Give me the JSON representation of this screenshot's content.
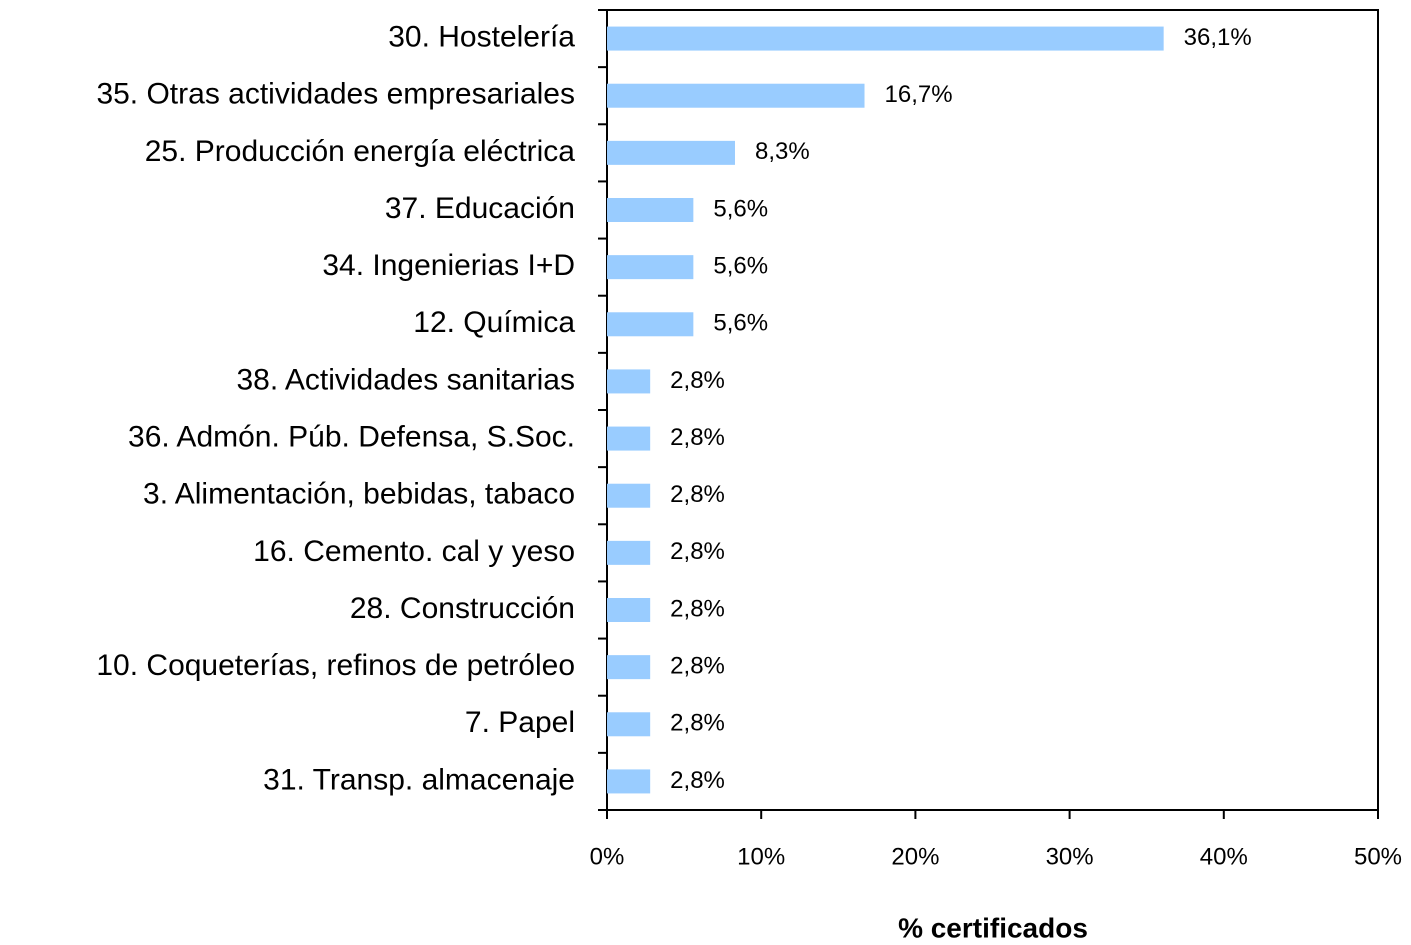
{
  "chart_data": {
    "type": "barh",
    "categories": [
      "30. Hostelería",
      "35. Otras actividades empresariales",
      "25. Producción energía eléctrica",
      "37. Educación",
      "34. Ingenierias I+D",
      "12. Química",
      "38. Actividades sanitarias",
      "36. Admón. Púb. Defensa, S.Soc.",
      "3. Alimentación, bebidas, tabaco",
      "16. Cemento. cal y yeso",
      "28. Construcción",
      "10. Coqueterías, refinos de petróleo",
      "7. Papel",
      "31. Transp. almacenaje"
    ],
    "values": [
      36.1,
      16.7,
      8.3,
      5.6,
      5.6,
      5.6,
      2.8,
      2.8,
      2.8,
      2.8,
      2.8,
      2.8,
      2.8,
      2.8
    ],
    "value_labels": [
      "36,1%",
      "16,7%",
      "8,3%",
      "5,6%",
      "5,6%",
      "5,6%",
      "2,8%",
      "2,8%",
      "2,8%",
      "2,8%",
      "2,8%",
      "2,8%",
      "2,8%",
      "2,8%"
    ],
    "color": "#99ccff",
    "xlabel": "% certificados",
    "xlim": [
      0,
      50
    ],
    "xticks": [
      {
        "value": 0,
        "label": "0%"
      },
      {
        "value": 10,
        "label": "10%"
      },
      {
        "value": 20,
        "label": "20%"
      },
      {
        "value": 30,
        "label": "30%"
      },
      {
        "value": 40,
        "label": "40%"
      },
      {
        "value": 50,
        "label": "50%"
      }
    ]
  }
}
